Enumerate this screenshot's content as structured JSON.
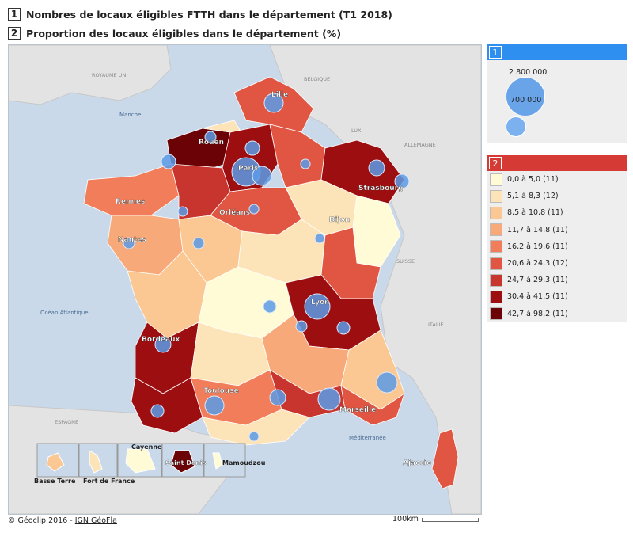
{
  "titles": [
    {
      "num": "1",
      "text": "Nombres de locaux éligibles FTTH dans le département (T1 2018)"
    },
    {
      "num": "2",
      "text": "Proportion des locaux éligibles dans le département (%)"
    }
  ],
  "map": {
    "sea_labels": {
      "manche": "Manche",
      "atlantique": "Océan Atlantique",
      "mediterranee": "Méditerranée"
    },
    "country_labels": {
      "ru": "ROYAUME UNI",
      "belgique": "BELGIQUE",
      "lux": "LUX",
      "allemagne": "ALLEMAGNE",
      "suisse": "SUISSE",
      "italie": "ITALIE",
      "espagne": "ESPAGNE"
    },
    "cities": [
      "Lille",
      "Rouen",
      "Paris",
      "Strasbourg",
      "Rennes",
      "Orléans",
      "Nantes",
      "Dijon",
      "Lyon",
      "Bordeaux",
      "Toulouse",
      "Marseille",
      "Ajaccio"
    ],
    "insets": [
      "Basse Terre",
      "Fort de France",
      "Cayenne",
      "Saint Denis",
      "Mamoudzou"
    ],
    "colors": {
      "sea": "#c9d9ea",
      "land": "#e3e3e3",
      "bubble": "#5b9be8"
    }
  },
  "legend1": {
    "num": "1",
    "color": "#2e8ff0",
    "big": "2 800 000",
    "small": "700 000"
  },
  "legend2": {
    "num": "2",
    "color": "#d63a35",
    "classes": [
      {
        "label": "0,0 à 5,0 (11)",
        "color": "#fffbd6"
      },
      {
        "label": "5,1 à 8,3 (12)",
        "color": "#fce4b8"
      },
      {
        "label": "8,5 à 10,8 (11)",
        "color": "#fbc893"
      },
      {
        "label": "11,7 à 14,8 (11)",
        "color": "#f8a97a"
      },
      {
        "label": "16,2 à 19,6 (11)",
        "color": "#f27d5a"
      },
      {
        "label": "20,6 à 24,3 (12)",
        "color": "#e05643"
      },
      {
        "label": "24,7 à 29,3 (11)",
        "color": "#c8352f"
      },
      {
        "label": "30,4 à 41,5 (11)",
        "color": "#9d0e11"
      },
      {
        "label": "42,7 à 98,2 (11)",
        "color": "#6b0306"
      }
    ]
  },
  "footer": {
    "copyright": "© Géoclip 2016 - ",
    "link": "IGN GéoFla",
    "scale": "100km"
  }
}
